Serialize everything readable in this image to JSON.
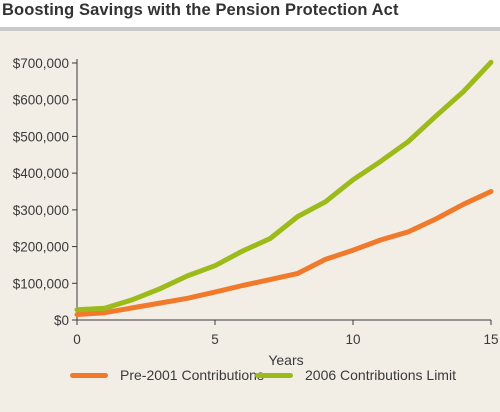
{
  "title": "Boosting Savings with the Pension Protection Act",
  "chart_data": {
    "type": "line",
    "title": "Boosting Savings with the Pension Protection Act",
    "xlabel": "Years",
    "ylabel": "",
    "xlim": [
      0,
      15
    ],
    "ylim": [
      0,
      700000
    ],
    "xticks": [
      0,
      5,
      10,
      15
    ],
    "yticks": [
      0,
      100000,
      200000,
      300000,
      400000,
      500000,
      600000,
      700000
    ],
    "ytick_labels": [
      "$0",
      "$100,000",
      "$200,000",
      "$300,000",
      "$400,000",
      "$500,000",
      "$600,000",
      "$700,000"
    ],
    "grid": false,
    "legend_position": "bottom",
    "series": [
      {
        "name": "Pre-2001 Contributions",
        "color": "#f0792b",
        "x": [
          0,
          1,
          2,
          3,
          4,
          5,
          6,
          7,
          8,
          9,
          10,
          11,
          12,
          13,
          14,
          15
        ],
        "values": [
          15000,
          20000,
          33000,
          46000,
          59000,
          76000,
          94000,
          110000,
          127000,
          165000,
          190000,
          218000,
          240000,
          275000,
          315000,
          350000
        ]
      },
      {
        "name": "2006 Contributions Limit",
        "color": "#9cbb1a",
        "x": [
          0,
          1,
          2,
          3,
          4,
          5,
          6,
          7,
          8,
          9,
          10,
          11,
          12,
          13,
          14,
          15
        ],
        "values": [
          28000,
          32000,
          55000,
          85000,
          120000,
          148000,
          188000,
          222000,
          282000,
          322000,
          382000,
          432000,
          486000,
          555000,
          622000,
          702000
        ]
      }
    ]
  }
}
